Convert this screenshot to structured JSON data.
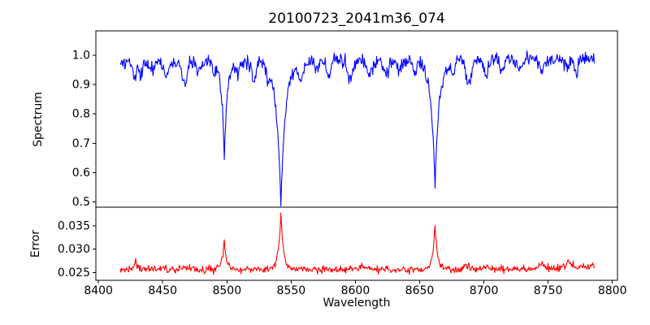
{
  "chart_data": {
    "type": "line",
    "title": "20100723_2041m36_074",
    "xlabel": "Wavelength",
    "xlim": [
      8398,
      8804
    ],
    "x_ticks": [
      8400,
      8450,
      8500,
      8550,
      8600,
      8650,
      8700,
      8750,
      8800
    ],
    "x_data_range": [
      8417,
      8786
    ],
    "grid": false,
    "legend": "none",
    "noise_seed": 20100723,
    "panels": [
      {
        "name": "spectrum",
        "ylabel": "Spectrum",
        "ylim": [
          0.4825,
          1.0825
        ],
        "y_ticks": [
          1.0,
          0.9,
          0.8,
          0.7,
          0.6,
          0.5
        ],
        "y_tick_labels": [
          "1.0",
          "0.9",
          "0.8",
          "0.7",
          "0.6",
          "0.5"
        ],
        "line_color": "#0000ff",
        "continuum": {
          "base": 0.972,
          "slope_per_angstrom": 4e-05
        },
        "noise_sigma": 0.012,
        "absorption_lines": [
          {
            "center": 8498,
            "depth": 0.32,
            "width": 2.2,
            "observed_min": 0.655
          },
          {
            "center": 8542,
            "depth": 0.478,
            "width": 3.6,
            "observed_min": 0.497
          },
          {
            "center": 8662,
            "depth": 0.43,
            "width": 3.2,
            "observed_min": 0.545
          }
        ],
        "minor_dips": [
          {
            "center": 8428,
            "depth": 0.045,
            "width": 1.6
          },
          {
            "center": 8433,
            "depth": 0.04,
            "width": 1.4
          },
          {
            "center": 8441,
            "depth": 0.03,
            "width": 1.4
          },
          {
            "center": 8453,
            "depth": 0.045,
            "width": 1.6
          },
          {
            "center": 8467,
            "depth": 0.08,
            "width": 1.8
          },
          {
            "center": 8478,
            "depth": 0.035,
            "width": 1.4
          },
          {
            "center": 8490,
            "depth": 0.03,
            "width": 1.3
          },
          {
            "center": 8508,
            "depth": 0.03,
            "width": 1.4
          },
          {
            "center": 8521,
            "depth": 0.06,
            "width": 1.8
          },
          {
            "center": 8532,
            "depth": 0.035,
            "width": 1.3
          },
          {
            "center": 8557,
            "depth": 0.055,
            "width": 1.7
          },
          {
            "center": 8570,
            "depth": 0.035,
            "width": 1.4
          },
          {
            "center": 8579,
            "depth": 0.05,
            "width": 1.6
          },
          {
            "center": 8596,
            "depth": 0.055,
            "width": 1.8
          },
          {
            "center": 8611,
            "depth": 0.05,
            "width": 1.6
          },
          {
            "center": 8624,
            "depth": 0.04,
            "width": 1.5
          },
          {
            "center": 8634,
            "depth": 0.035,
            "width": 1.4
          },
          {
            "center": 8646,
            "depth": 0.04,
            "width": 1.5
          },
          {
            "center": 8676,
            "depth": 0.04,
            "width": 1.5
          },
          {
            "center": 8688,
            "depth": 0.085,
            "width": 1.9
          },
          {
            "center": 8702,
            "depth": 0.05,
            "width": 1.6
          },
          {
            "center": 8714,
            "depth": 0.04,
            "width": 1.5
          },
          {
            "center": 8727,
            "depth": 0.04,
            "width": 1.5
          },
          {
            "center": 8746,
            "depth": 0.04,
            "width": 1.6
          },
          {
            "center": 8765,
            "depth": 0.035,
            "width": 1.4
          },
          {
            "center": 8772,
            "depth": 0.04,
            "width": 1.4
          }
        ]
      },
      {
        "name": "error",
        "ylabel": "Error",
        "ylim": [
          0.0233,
          0.039
        ],
        "y_ticks": [
          0.035,
          0.03,
          0.025
        ],
        "y_tick_labels": [
          "0.035",
          "0.030",
          "0.025"
        ],
        "line_color": "#ff0000",
        "baseline": {
          "base": 0.0256,
          "slope_per_angstrom": 0.0
        },
        "noise_sigma": 0.00038,
        "peaks": [
          {
            "center": 8429,
            "amplitude": 0.0029,
            "width": 1.2
          },
          {
            "center": 8450,
            "amplitude": 0.0005,
            "width": 2.0
          },
          {
            "center": 8467,
            "amplitude": 0.0009,
            "width": 1.5
          },
          {
            "center": 8498,
            "amplitude": 0.0067,
            "width": 1.6
          },
          {
            "center": 8521,
            "amplitude": 0.0006,
            "width": 2.0
          },
          {
            "center": 8542,
            "amplitude": 0.0118,
            "width": 2.0
          },
          {
            "center": 8557,
            "amplitude": 0.0005,
            "width": 2.0
          },
          {
            "center": 8579,
            "amplitude": 0.0005,
            "width": 2.0
          },
          {
            "center": 8596,
            "amplitude": 0.0006,
            "width": 2.0
          },
          {
            "center": 8605,
            "amplitude": 0.0008,
            "width": 2.0
          },
          {
            "center": 8662,
            "amplitude": 0.0095,
            "width": 1.8
          },
          {
            "center": 8688,
            "amplitude": 0.0012,
            "width": 2.0
          },
          {
            "center": 8702,
            "amplitude": 0.0006,
            "width": 2.0
          },
          {
            "center": 8745,
            "amplitude": 0.0009,
            "width": 2.5
          },
          {
            "center": 8766,
            "amplitude": 0.0013,
            "width": 3.0
          },
          {
            "center": 8786,
            "amplitude": 0.0008,
            "width": 25.0
          }
        ]
      }
    ]
  },
  "colors": {
    "background": "#ffffff",
    "axes": "#000000",
    "spectrum_line": "#0000ff",
    "error_line": "#ff0000"
  }
}
